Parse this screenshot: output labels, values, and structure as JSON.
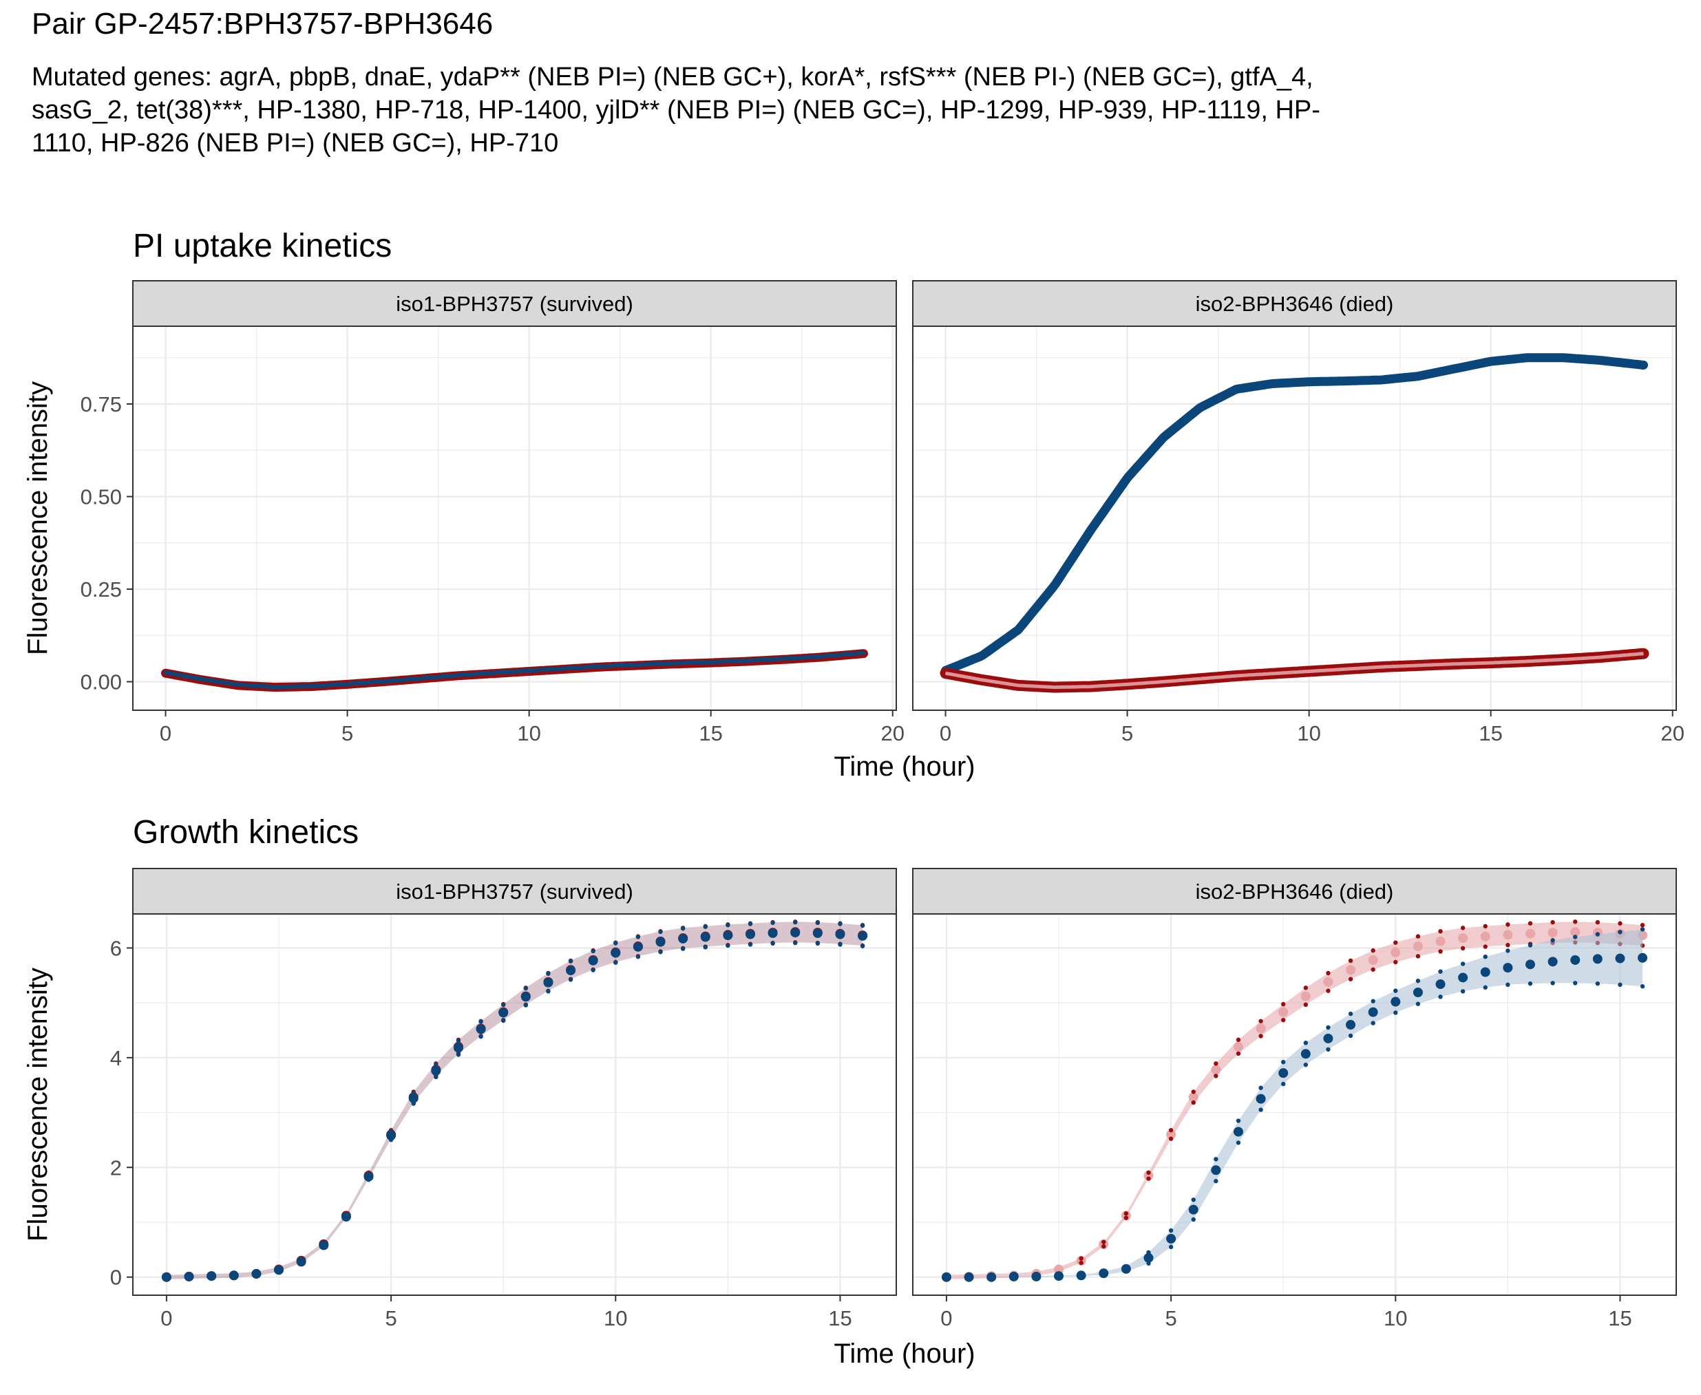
{
  "figure": {
    "title": "Pair GP-2457:BPH3757-BPH3646",
    "subtitle": "Mutated genes: agrA, pbpB, dnaE, ydaP** (NEB PI=) (NEB GC+), korA*, rsfS*** (NEB PI-) (NEB GC=), gtfA_4, sasG_2, tet(38)***, HP-1380, HP-718, HP-1400, yjlD** (NEB PI=) (NEB GC=), HP-1299, HP-939, HP-1119, HP-1110, HP-826 (NEB PI=) (NEB GC=), HP-710"
  },
  "colors": {
    "red": "#9b0c0c",
    "blue": "#0b467a",
    "red_band": "#e4a3a8",
    "blue_band": "#a7bfd6",
    "strip": "#d9d9d9",
    "grid": "#ebebeb"
  },
  "chart_data": [
    {
      "type": "scatter",
      "title": "PI uptake kinetics",
      "xlabel": "Time (hour)",
      "ylabel": "Fluorescence intensity",
      "xlim": [
        -0.9,
        20.1
      ],
      "ylim": [
        -0.077,
        0.96
      ],
      "xticks": [
        0,
        5,
        10,
        15,
        20
      ],
      "yticks": [
        0.0,
        0.25,
        0.5,
        0.75
      ],
      "ytick_labels": [
        "0.00",
        "0.25",
        "0.50",
        "0.75"
      ],
      "grid": true,
      "panels": [
        {
          "strip": "iso1-BPH3757 (survived)",
          "series": [
            {
              "color": "red",
              "x": [
                0,
                1,
                2,
                3,
                4,
                5,
                6,
                7,
                8,
                9,
                10,
                11,
                12,
                13,
                14,
                15,
                16,
                17,
                18,
                19.2
              ],
              "values": [
                0.023,
                0.005,
                -0.01,
                -0.015,
                -0.013,
                -0.007,
                0.0,
                0.008,
                0.016,
                0.022,
                0.028,
                0.034,
                0.04,
                0.044,
                0.048,
                0.051,
                0.055,
                0.06,
                0.066,
                0.076
              ]
            },
            {
              "color": "blue",
              "x": [
                0,
                1,
                2,
                3,
                4,
                5,
                6,
                7,
                8,
                9,
                10,
                11,
                12,
                13,
                14,
                15,
                16,
                17,
                18,
                19.2
              ],
              "values": [
                0.025,
                0.007,
                -0.008,
                -0.014,
                -0.012,
                -0.006,
                0.001,
                0.009,
                0.017,
                0.024,
                0.03,
                0.036,
                0.042,
                0.046,
                0.05,
                0.053,
                0.057,
                0.062,
                0.068,
                0.078
              ]
            }
          ]
        },
        {
          "strip": "iso2-BPH3646 (died)",
          "series": [
            {
              "color": "blue",
              "x": [
                0,
                1,
                2,
                3,
                4,
                5,
                6,
                7,
                8,
                9,
                10,
                11,
                12,
                13,
                14,
                15,
                16,
                17,
                18,
                19.2
              ],
              "values": [
                0.03,
                0.07,
                0.14,
                0.26,
                0.41,
                0.55,
                0.66,
                0.74,
                0.79,
                0.805,
                0.81,
                0.812,
                0.815,
                0.825,
                0.845,
                0.865,
                0.875,
                0.875,
                0.868,
                0.855
              ]
            },
            {
              "color": "red",
              "x": [
                0,
                1,
                2,
                3,
                4,
                5,
                6,
                7,
                8,
                9,
                10,
                11,
                12,
                13,
                14,
                15,
                16,
                17,
                18,
                19.2
              ],
              "values": [
                0.023,
                0.005,
                -0.01,
                -0.015,
                -0.013,
                -0.007,
                0.0,
                0.008,
                0.016,
                0.022,
                0.028,
                0.034,
                0.04,
                0.044,
                0.048,
                0.051,
                0.055,
                0.06,
                0.066,
                0.076
              ]
            }
          ]
        }
      ]
    },
    {
      "type": "scatter",
      "title": "Growth kinetics",
      "xlabel": "Time (hour)",
      "ylabel": "Fluorescence intensity",
      "xlim": [
        -0.75,
        16.25
      ],
      "ylim": [
        -0.33,
        6.62
      ],
      "xticks": [
        0,
        5,
        10,
        15
      ],
      "yticks": [
        0,
        2,
        4,
        6
      ],
      "ytick_labels": [
        "0",
        "2",
        "4",
        "6"
      ],
      "grid": true,
      "panels": [
        {
          "strip": "iso1-BPH3757 (survived)",
          "series": [
            {
              "color": "red",
              "x": [
                0,
                0.5,
                1,
                1.5,
                2,
                2.5,
                3,
                3.5,
                4,
                4.5,
                5,
                5.5,
                6,
                6.5,
                7,
                7.5,
                8,
                8.5,
                9,
                9.5,
                10,
                10.5,
                11,
                11.5,
                12,
                12.5,
                13,
                13.5,
                14,
                14.5,
                15,
                15.5
              ],
              "values": [
                0.0,
                0.01,
                0.02,
                0.03,
                0.06,
                0.14,
                0.3,
                0.6,
                1.12,
                1.85,
                2.6,
                3.28,
                3.78,
                4.2,
                4.53,
                4.83,
                5.12,
                5.38,
                5.6,
                5.78,
                5.92,
                6.03,
                6.12,
                6.18,
                6.21,
                6.24,
                6.26,
                6.28,
                6.29,
                6.28,
                6.26,
                6.23
              ]
            },
            {
              "color": "blue",
              "x": [
                0,
                0.5,
                1,
                1.5,
                2,
                2.5,
                3,
                3.5,
                4,
                4.5,
                5,
                5.5,
                6,
                6.5,
                7,
                7.5,
                8,
                8.5,
                9,
                9.5,
                10,
                10.5,
                11,
                11.5,
                12,
                12.5,
                13,
                13.5,
                14,
                14.5,
                15,
                15.5
              ],
              "values": [
                0.0,
                0.01,
                0.02,
                0.03,
                0.06,
                0.13,
                0.28,
                0.58,
                1.1,
                1.83,
                2.58,
                3.26,
                3.76,
                4.18,
                4.52,
                4.82,
                5.11,
                5.37,
                5.59,
                5.77,
                5.91,
                6.02,
                6.11,
                6.17,
                6.2,
                6.23,
                6.25,
                6.27,
                6.28,
                6.27,
                6.25,
                6.22
              ]
            }
          ]
        },
        {
          "strip": "iso2-BPH3646 (died)",
          "series": [
            {
              "color": "red",
              "x": [
                0,
                0.5,
                1,
                1.5,
                2,
                2.5,
                3,
                3.5,
                4,
                4.5,
                5,
                5.5,
                6,
                6.5,
                7,
                7.5,
                8,
                8.5,
                9,
                9.5,
                10,
                10.5,
                11,
                11.5,
                12,
                12.5,
                13,
                13.5,
                14,
                14.5,
                15,
                15.5
              ],
              "values": [
                0.0,
                0.01,
                0.02,
                0.03,
                0.06,
                0.14,
                0.3,
                0.6,
                1.12,
                1.85,
                2.6,
                3.28,
                3.78,
                4.2,
                4.53,
                4.83,
                5.12,
                5.38,
                5.6,
                5.78,
                5.92,
                6.03,
                6.12,
                6.18,
                6.21,
                6.24,
                6.26,
                6.28,
                6.29,
                6.28,
                6.26,
                6.23
              ]
            },
            {
              "color": "blue",
              "x": [
                0,
                0.5,
                1,
                1.5,
                2,
                2.5,
                3,
                3.5,
                4,
                4.5,
                5,
                5.5,
                6,
                6.5,
                7,
                7.5,
                8,
                8.5,
                9,
                9.5,
                10,
                10.5,
                11,
                11.5,
                12,
                12.5,
                13,
                13.5,
                14,
                14.5,
                15,
                15.5
              ],
              "values": [
                0.0,
                0.0,
                0.0,
                0.01,
                0.01,
                0.02,
                0.03,
                0.07,
                0.15,
                0.35,
                0.7,
                1.23,
                1.95,
                2.65,
                3.25,
                3.72,
                4.07,
                4.35,
                4.6,
                4.83,
                5.02,
                5.19,
                5.34,
                5.46,
                5.56,
                5.64,
                5.7,
                5.75,
                5.78,
                5.8,
                5.81,
                5.82
              ],
              "lower": [
                0.0,
                0.0,
                0.0,
                0.0,
                0.0,
                0.01,
                0.02,
                0.04,
                0.1,
                0.25,
                0.55,
                1.05,
                1.75,
                2.45,
                3.05,
                3.52,
                3.87,
                4.15,
                4.4,
                4.63,
                4.82,
                4.98,
                5.11,
                5.21,
                5.28,
                5.33,
                5.35,
                5.36,
                5.36,
                5.35,
                5.33,
                5.3
              ],
              "upper": [
                0.0,
                0.0,
                0.0,
                0.02,
                0.02,
                0.03,
                0.04,
                0.1,
                0.2,
                0.45,
                0.85,
                1.41,
                2.15,
                2.85,
                3.45,
                3.92,
                4.27,
                4.55,
                4.8,
                5.03,
                5.22,
                5.4,
                5.57,
                5.71,
                5.84,
                5.95,
                6.05,
                6.14,
                6.2,
                6.25,
                6.29,
                6.34
              ]
            }
          ]
        }
      ]
    }
  ]
}
